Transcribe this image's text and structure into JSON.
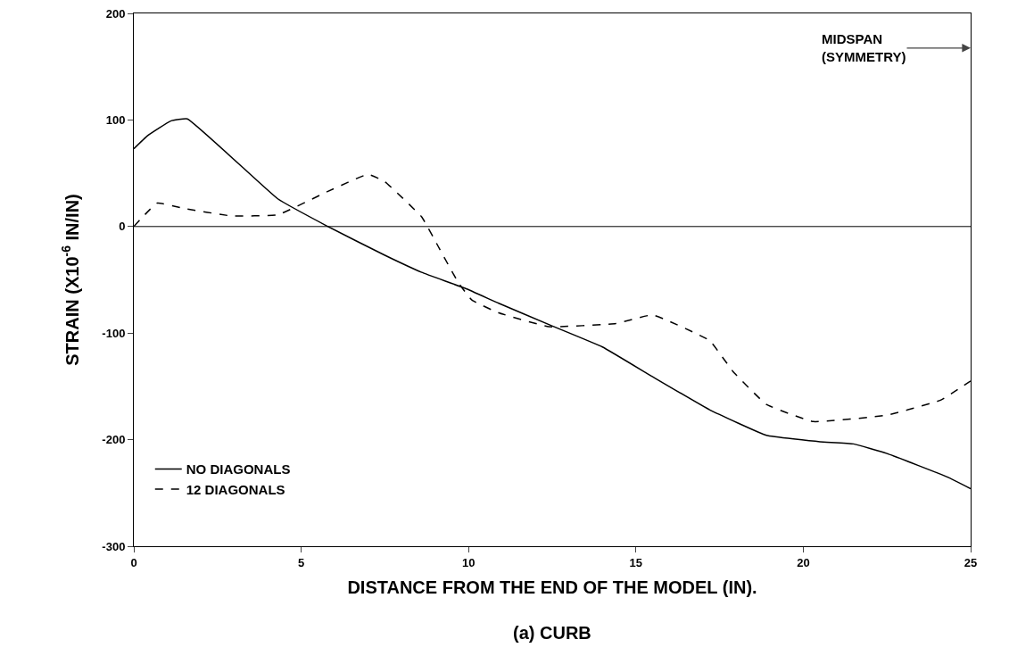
{
  "chart_data": {
    "type": "line",
    "xlabel": "DISTANCE FROM THE END OF THE MODEL (IN).",
    "ylabel": "STRAIN (X10$^{-6}$ IN/IN)",
    "annotations": [
      "MIDSPAN\n(SYMMETRY)",
      "(a) CURB"
    ],
    "xlim": [
      0,
      25
    ],
    "xticks": [
      0,
      5,
      10,
      15,
      20,
      25
    ],
    "ylim": [
      -300,
      200
    ],
    "yticks": [
      -300,
      -200,
      -100,
      0,
      100,
      200
    ],
    "grid": false,
    "legend": "bottom left",
    "marker": "none",
    "ref_lines": [
      {
        "axis": "y",
        "value": 0,
        "color": "#000000"
      }
    ],
    "series": [
      {
        "name": "NO DIAGONALS",
        "color": "#000000",
        "line_style": "solid",
        "x": [
          0,
          0.4,
          1.1,
          1.6,
          4.3,
          5.8,
          7.5,
          8.6,
          9.9,
          10.9,
          12.4,
          14,
          15.5,
          17.2,
          18.9,
          20.5,
          21.5,
          22.5,
          24.3,
          25
        ],
        "values": [
          73,
          85,
          99,
          101,
          26,
          0,
          -27,
          -43,
          -58,
          -72,
          -92,
          -113,
          -141,
          -172,
          -196,
          -202,
          -204,
          -213,
          -235,
          -246
        ]
      },
      {
        "name": "12 DIAGONALS",
        "color": "#000000",
        "line_style": "dashed",
        "x": [
          0,
          0.7,
          1.5,
          2.9,
          4.3,
          5.8,
          7,
          7.5,
          8.6,
          9.1,
          9.7,
          10.1,
          10.9,
          12.4,
          14.4,
          15.5,
          17.2,
          17.9,
          18.9,
          20.3,
          22.5,
          24.1,
          25
        ],
        "values": [
          0,
          22,
          17,
          10,
          11,
          33,
          49,
          42,
          9,
          -19,
          -53,
          -69,
          -81,
          -94,
          -91,
          -83,
          -107,
          -136,
          -167,
          -183,
          -177,
          -163,
          -145
        ]
      }
    ]
  }
}
